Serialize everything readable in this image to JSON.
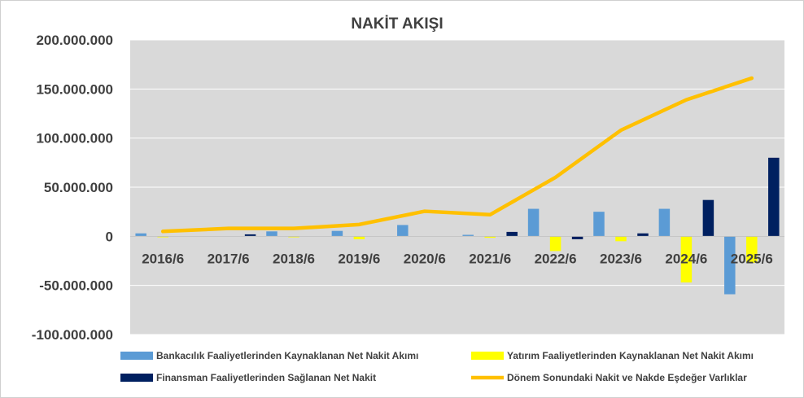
{
  "chart_data": {
    "type": "bar",
    "title": "NAKİT AKIŞI",
    "categories": [
      "2016/6",
      "2017/6",
      "2018/6",
      "2019/6",
      "2020/6",
      "2021/6",
      "2022/6",
      "2023/6",
      "2024/6",
      "2025/6"
    ],
    "ylim": [
      -100000000,
      200000000
    ],
    "yticks": [
      200000000,
      150000000,
      100000000,
      50000000,
      0,
      -50000000,
      -100000000
    ],
    "ytick_labels": [
      "200.000.000",
      "150.000.000",
      "100.000.000",
      "50.000.000",
      "0",
      "-50.000.000",
      "-100.000.000"
    ],
    "grid": true,
    "legend_position": "bottom",
    "series": [
      {
        "name": "Bankacılık Faaliyetlerinden Kaynaklanan Net Nakit Akımı",
        "kind": "bar",
        "color": "#5b9bd5",
        "values": [
          3000000,
          0,
          5000000,
          5500000,
          11500000,
          1500000,
          28000000,
          25000000,
          28000000,
          -59000000
        ]
      },
      {
        "name": "Yatırım Faaliyetlerinden Kaynaklanan Net Nakit Akımı",
        "kind": "bar",
        "color": "#ffff00",
        "values": [
          -1000000,
          0,
          -1000000,
          -3000000,
          0,
          -1500000,
          -15000000,
          -5000000,
          -47000000,
          -27000000
        ]
      },
      {
        "name": "Finansman Faaliyetlerinden Sağlanan Net Nakit",
        "kind": "bar",
        "color": "#002060",
        "values": [
          0,
          2000000,
          0,
          0,
          0,
          4500000,
          -3000000,
          3000000,
          37000000,
          80000000
        ]
      },
      {
        "name": "Dönem Sonundaki Nakit ve Nakde Eşdeğer Varlıklar",
        "kind": "line",
        "color": "#ffc000",
        "values": [
          5000000,
          8000000,
          8000000,
          12000000,
          25500000,
          22000000,
          60000000,
          108000000,
          139000000,
          161000000
        ]
      }
    ]
  }
}
